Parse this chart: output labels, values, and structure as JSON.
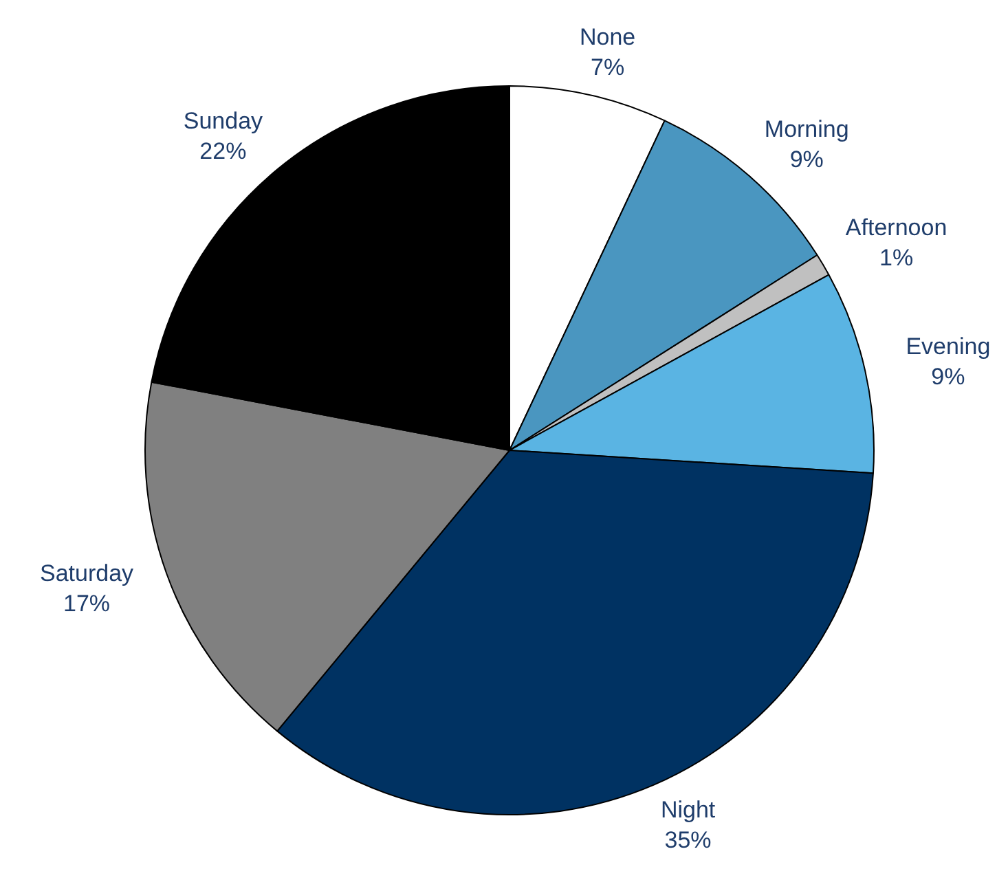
{
  "chart_data": {
    "type": "pie",
    "categories": [
      "None",
      "Morning",
      "Afternoon",
      "Evening",
      "Night",
      "Saturday",
      "Sunday"
    ],
    "values": [
      7,
      9,
      1,
      9,
      35,
      17,
      22
    ],
    "value_labels": [
      "7%",
      "9%",
      "1%",
      "9%",
      "35%",
      "17%",
      "22%"
    ],
    "colors": [
      "#ffffff",
      "#4a96c0",
      "#c0c0c0",
      "#5ab4e3",
      "#003262",
      "#808080",
      "#000000"
    ]
  }
}
